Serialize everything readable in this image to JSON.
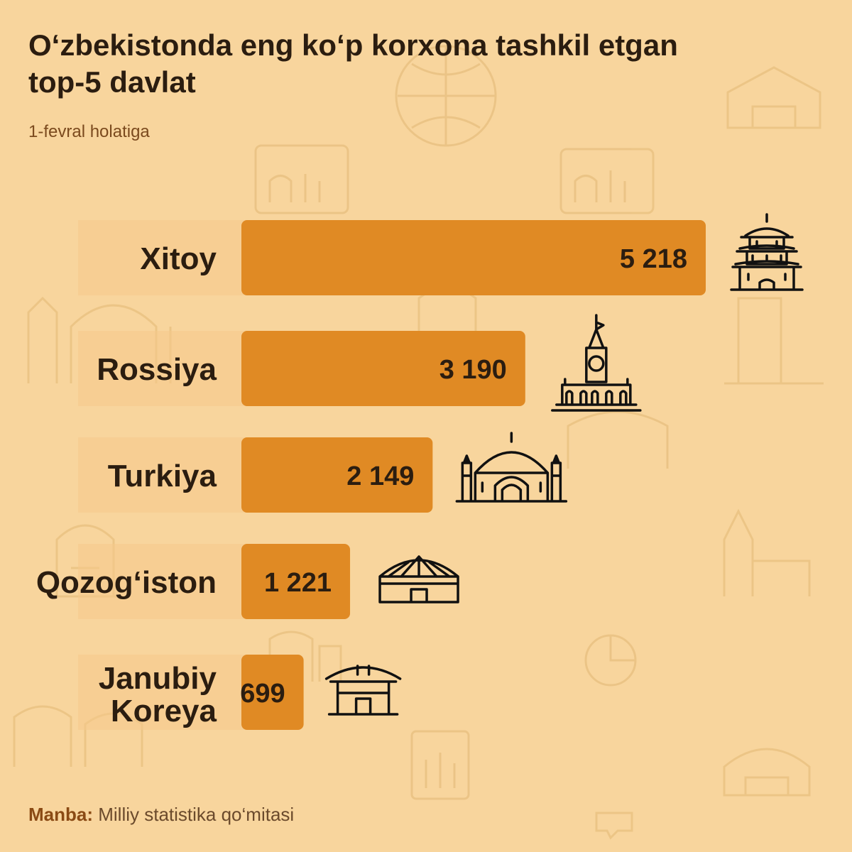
{
  "title": "O‘zbekistonda eng ko‘p korxona tashkil etgan top-5 davlat",
  "subtitle": "1-fevral holatiga",
  "source": {
    "label": "Manba:",
    "text": "Milliy statistika qo‘mitasi"
  },
  "colors": {
    "background": "#f8d59d",
    "bar": "#e08a24",
    "label_backdrop": "#f5c88a",
    "text": "#2b1d10"
  },
  "chart_data": {
    "type": "bar",
    "orientation": "horizontal",
    "categories": [
      "Xitoy",
      "Rossiya",
      "Turkiya",
      "Qozog‘iston",
      "Janubiy Koreya"
    ],
    "values": [
      5218,
      3190,
      2149,
      1221,
      699
    ],
    "value_labels": [
      "5 218",
      "3 190",
      "2 149",
      "1 221",
      "699"
    ],
    "icons": [
      "chinese-pagoda-icon",
      "kremlin-tower-icon",
      "mosque-icon",
      "yurt-icon",
      "korean-gate-icon"
    ],
    "title": "O‘zbekistonda eng ko‘p korxona tashkil etgan top-5 davlat",
    "subtitle": "1-fevral holatiga",
    "xlim": [
      0,
      5218
    ],
    "grid": false,
    "legend": "none"
  }
}
